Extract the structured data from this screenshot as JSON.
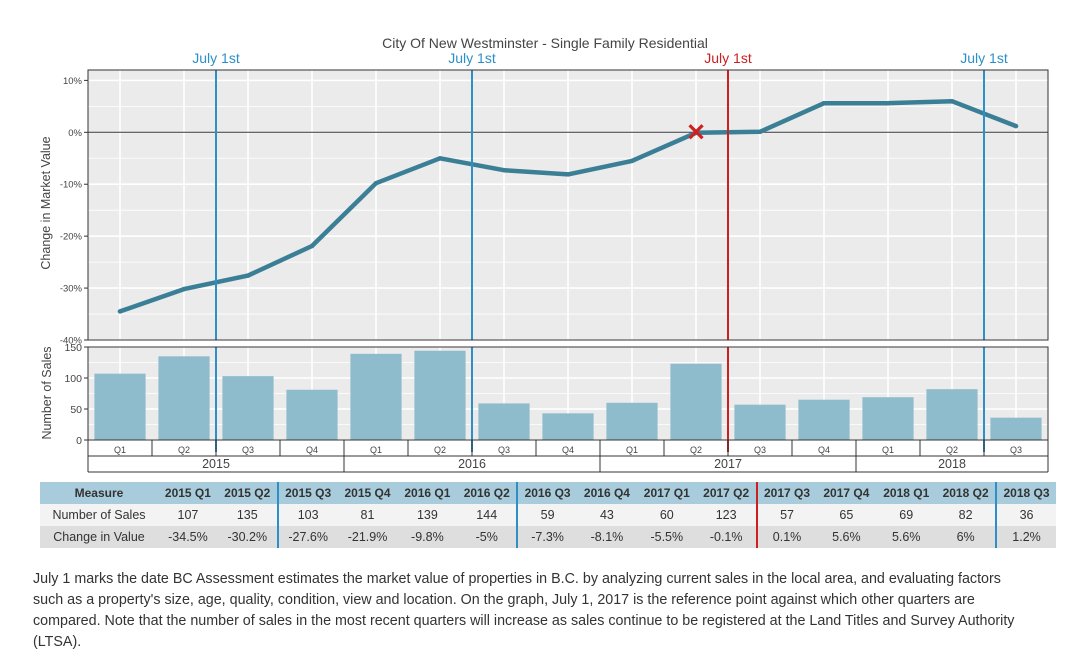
{
  "chart_data": [
    {
      "type": "line",
      "title": "City Of New Westminster - Single Family Residential",
      "ylabel": "Change in Market Value",
      "ylim": [
        -40,
        12
      ],
      "yticks": [
        "10%",
        "0%",
        "-10%",
        "-20%",
        "-30%",
        "-40%"
      ],
      "ytick_values": [
        10,
        0,
        -10,
        -20,
        -30,
        -40
      ],
      "categories": [
        "2015 Q1",
        "2015 Q2",
        "2015 Q3",
        "2015 Q4",
        "2016 Q1",
        "2016 Q2",
        "2016 Q3",
        "2016 Q4",
        "2017 Q1",
        "2017 Q2",
        "2017 Q3",
        "2017 Q4",
        "2018 Q1",
        "2018 Q2",
        "2018 Q3"
      ],
      "values": [
        -34.5,
        -30.2,
        -27.6,
        -21.9,
        -9.8,
        -5,
        -7.3,
        -8.1,
        -5.5,
        -0.1,
        0.1,
        5.6,
        5.6,
        6,
        1.2
      ],
      "series_color": "#3b7f96",
      "reference_marker": {
        "category": "2017 Q2",
        "value": 0,
        "symbol": "✕",
        "color": "#cc2222"
      }
    },
    {
      "type": "bar",
      "ylabel": "Number of Sales",
      "ylim": [
        0,
        150
      ],
      "yticks": [
        "150",
        "100",
        "50",
        "0"
      ],
      "ytick_values": [
        150,
        100,
        50,
        0
      ],
      "categories": [
        "2015 Q1",
        "2015 Q2",
        "2015 Q3",
        "2015 Q4",
        "2016 Q1",
        "2016 Q2",
        "2016 Q3",
        "2016 Q4",
        "2017 Q1",
        "2017 Q2",
        "2017 Q3",
        "2017 Q4",
        "2018 Q1",
        "2018 Q2",
        "2018 Q3"
      ],
      "values": [
        107,
        135,
        103,
        81,
        139,
        144,
        59,
        43,
        60,
        123,
        57,
        65,
        69,
        82,
        36
      ],
      "bar_color": "#8fbccc",
      "quarter_labels": [
        "Q1",
        "Q2",
        "Q3",
        "Q4",
        "Q1",
        "Q2",
        "Q3",
        "Q4",
        "Q1",
        "Q2",
        "Q3",
        "Q4",
        "Q1",
        "Q2",
        "Q3"
      ],
      "years": [
        "2015",
        "2016",
        "2017",
        "2018"
      ],
      "year_quarter_counts": [
        4,
        4,
        4,
        3
      ]
    }
  ],
  "markers": [
    {
      "label": "July 1st",
      "after_quarter": 1,
      "color": "#2e8fc8"
    },
    {
      "label": "July 1st",
      "after_quarter": 5,
      "color": "#2e8fc8"
    },
    {
      "label": "July 1st",
      "after_quarter": 9,
      "color": "#cc1f1f"
    },
    {
      "label": "July 1st",
      "after_quarter": 13,
      "color": "#2e8fc8"
    }
  ],
  "table": {
    "header_label": "Measure",
    "columns": [
      "2015 Q1",
      "2015 Q2",
      "2015 Q3",
      "2015 Q4",
      "2016 Q1",
      "2016 Q2",
      "2016 Q3",
      "2016 Q4",
      "2017 Q1",
      "2017 Q2",
      "2017 Q3",
      "2017 Q4",
      "2018 Q1",
      "2018 Q2",
      "2018 Q3"
    ],
    "rows": [
      {
        "label": "Number of Sales",
        "values": [
          "107",
          "135",
          "103",
          "81",
          "139",
          "144",
          "59",
          "43",
          "60",
          "123",
          "57",
          "65",
          "69",
          "82",
          "36"
        ]
      },
      {
        "label": "Change in Value",
        "values": [
          "-34.5%",
          "-30.2%",
          "-27.6%",
          "-21.9%",
          "-9.8%",
          "-5%",
          "-7.3%",
          "-8.1%",
          "-5.5%",
          "-0.1%",
          "0.1%",
          "5.6%",
          "5.6%",
          "6%",
          "1.2%"
        ]
      }
    ]
  },
  "description": "July 1 marks the date BC Assessment estimates the market value of properties in B.C. by analyzing current sales in the local area, and evaluating factors such as a property's size, age, quality, condition, view and location. On the graph, July 1, 2017 is the reference point against which other quarters are compared. Note that the number of sales in the most recent quarters will increase as sales continue to be registered at the Land Titles and Survey Authority (LTSA).",
  "colors": {
    "panel_bg": "#ebebeb",
    "grid": "#ffffff",
    "line": "#3b7f96",
    "bar": "#8fbccc",
    "marker_blue": "#2e8fc8",
    "marker_red": "#cc1f1f",
    "table_header_bg": "#a9ccdc"
  }
}
